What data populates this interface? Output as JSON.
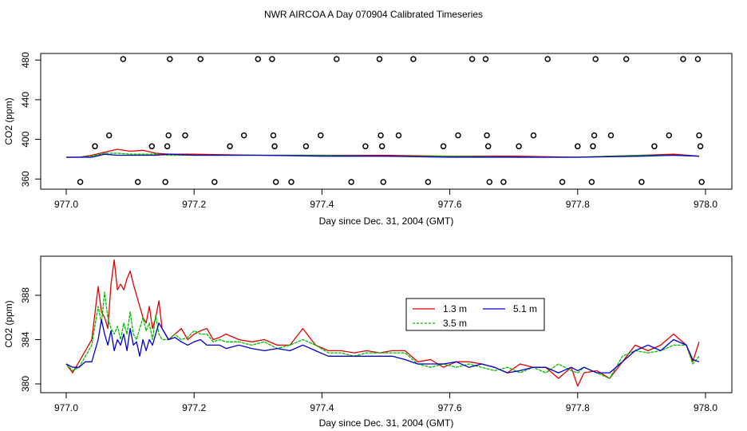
{
  "title": "NWR AIRCOA A  Day 070904  Calibrated Timeseries",
  "colors": {
    "r13": "#e00000",
    "r35": "#00bb00",
    "r51": "#0000cc",
    "axis": "#000000"
  },
  "chart_data": [
    {
      "type": "scatter+line",
      "xlabel": "Day since Dec. 31, 2004 (GMT)",
      "ylabel": "CO2 (ppm)",
      "xlim": [
        977.0,
        978.0
      ],
      "ylim": [
        352,
        485
      ],
      "xticks": [
        "977.0",
        "977.2",
        "977.4",
        "977.6",
        "977.8",
        "978.0"
      ],
      "yticks": [
        "360",
        "400",
        "440",
        "480"
      ],
      "xtick_values": [
        977.0,
        977.2,
        977.4,
        977.6,
        977.8,
        978.0
      ],
      "ytick_values": [
        360,
        400,
        440,
        480
      ],
      "calibration_points": {
        "x": [
          977.022,
          977.045,
          977.067,
          977.089,
          977.112,
          977.134,
          977.155,
          977.158,
          977.16,
          977.162,
          977.186,
          977.21,
          977.232,
          977.256,
          977.278,
          977.3,
          977.322,
          977.324,
          977.326,
          977.328,
          977.352,
          977.375,
          977.398,
          977.423,
          977.446,
          977.468,
          977.49,
          977.492,
          977.494,
          977.496,
          977.52,
          977.543,
          977.566,
          977.59,
          977.613,
          977.635,
          977.656,
          977.658,
          977.66,
          977.662,
          977.684,
          977.708,
          977.731,
          977.753,
          977.776,
          977.8,
          977.822,
          977.824,
          977.826,
          977.828,
          977.852,
          977.876,
          977.9,
          977.92,
          977.943,
          977.965,
          977.988,
          977.99,
          977.992,
          977.994
        ],
        "y": [
          357,
          393,
          404,
          481,
          357,
          393,
          357,
          393,
          404,
          481,
          404,
          481,
          357,
          393,
          404,
          481,
          481,
          404,
          393,
          357,
          357,
          393,
          404,
          481,
          357,
          393,
          481,
          404,
          393,
          357,
          404,
          481,
          357,
          393,
          404,
          481,
          481,
          404,
          393,
          357,
          357,
          393,
          404,
          481,
          357,
          393,
          357,
          393,
          404,
          481,
          404,
          481,
          357,
          393,
          404,
          481,
          481,
          404,
          393,
          357
        ]
      },
      "series": [
        {
          "name": "1.3 m",
          "color_key": "r13",
          "x": [
            977.0,
            977.02,
            977.04,
            977.06,
            977.08,
            977.1,
            977.12,
            977.14,
            977.16,
            977.2,
            977.3,
            977.4,
            977.5,
            977.6,
            977.7,
            977.8,
            977.9,
            977.95,
            977.99
          ],
          "y": [
            382,
            382,
            384,
            387,
            390,
            388,
            389,
            386,
            385,
            385,
            384,
            384,
            384,
            383,
            383,
            382,
            384,
            385,
            383
          ]
        },
        {
          "name": "3.5 m",
          "color_key": "r35",
          "x": [
            977.0,
            977.02,
            977.04,
            977.06,
            977.08,
            977.1,
            977.12,
            977.14,
            977.16,
            977.2,
            977.3,
            977.4,
            977.5,
            977.6,
            977.7,
            977.8,
            977.9,
            977.95,
            977.99
          ],
          "y": [
            382,
            382,
            383,
            386,
            386,
            385,
            385,
            385,
            384,
            384,
            384,
            384,
            383,
            383,
            382,
            382,
            384,
            384,
            383
          ]
        },
        {
          "name": "5.1 m",
          "color_key": "r51",
          "x": [
            977.0,
            977.02,
            977.04,
            977.06,
            977.08,
            977.1,
            977.12,
            977.14,
            977.16,
            977.2,
            977.3,
            977.4,
            977.5,
            977.6,
            977.7,
            977.8,
            977.9,
            977.95,
            977.99
          ],
          "y": [
            382,
            382,
            382,
            385,
            384,
            384,
            384,
            384,
            385,
            384,
            384,
            383,
            383,
            382,
            382,
            382,
            383,
            384,
            383
          ]
        }
      ]
    },
    {
      "type": "line",
      "xlabel": "Day since Dec. 31, 2004 (GMT)",
      "ylabel": "CO2 (ppm)",
      "xlim": [
        977.0,
        978.0
      ],
      "ylim": [
        379.5,
        391.5
      ],
      "xticks": [
        "977.0",
        "977.2",
        "977.4",
        "977.6",
        "977.8",
        "978.0"
      ],
      "yticks": [
        "380",
        "384",
        "388"
      ],
      "xtick_values": [
        977.0,
        977.2,
        977.4,
        977.6,
        977.8,
        978.0
      ],
      "ytick_values": [
        380,
        384,
        388
      ],
      "legend": {
        "placement": "center-right",
        "entries": [
          "1.3 m",
          "5.1 m",
          "3.5 m"
        ]
      },
      "series": [
        {
          "name": "1.3 m",
          "color_key": "r13",
          "x": [
            977.0,
            977.01,
            977.02,
            977.03,
            977.04,
            977.05,
            977.055,
            977.06,
            977.065,
            977.07,
            977.075,
            977.08,
            977.085,
            977.09,
            977.095,
            977.1,
            977.105,
            977.11,
            977.115,
            977.12,
            977.125,
            977.13,
            977.135,
            977.14,
            977.145,
            977.15,
            977.16,
            977.17,
            977.18,
            977.19,
            977.2,
            977.21,
            977.22,
            977.23,
            977.24,
            977.25,
            977.27,
            977.29,
            977.31,
            977.33,
            977.35,
            977.37,
            977.39,
            977.41,
            977.43,
            977.45,
            977.47,
            977.49,
            977.51,
            977.53,
            977.55,
            977.57,
            977.59,
            977.61,
            977.63,
            977.65,
            977.67,
            977.69,
            977.71,
            977.73,
            977.75,
            977.77,
            977.79,
            977.8,
            977.81,
            977.83,
            977.85,
            977.87,
            977.89,
            977.91,
            977.93,
            977.95,
            977.97,
            977.98,
            977.99
          ],
          "y": [
            381.8,
            381.0,
            382.0,
            383.0,
            384.0,
            388.8,
            386.5,
            386.0,
            385.0,
            389.0,
            391.2,
            388.5,
            389.0,
            388.5,
            389.5,
            390.2,
            389.0,
            388.0,
            387.0,
            386.0,
            385.5,
            387.0,
            385.0,
            386.0,
            387.5,
            385.0,
            384.0,
            384.5,
            385.0,
            384.0,
            384.5,
            384.8,
            385.0,
            384.0,
            384.2,
            384.5,
            384.0,
            383.8,
            384.0,
            383.5,
            383.5,
            385.0,
            383.5,
            383.0,
            383.0,
            382.8,
            383.0,
            382.8,
            383.0,
            383.0,
            382.0,
            382.2,
            381.5,
            382.0,
            382.0,
            381.8,
            381.5,
            381.0,
            381.8,
            381.5,
            381.5,
            380.5,
            381.5,
            379.8,
            381.0,
            381.2,
            380.5,
            382.0,
            383.5,
            383.0,
            383.5,
            384.5,
            383.5,
            382.0,
            383.8
          ]
        },
        {
          "name": "3.5 m",
          "color_key": "r35",
          "x": [
            977.0,
            977.01,
            977.02,
            977.03,
            977.04,
            977.05,
            977.055,
            977.06,
            977.065,
            977.07,
            977.075,
            977.08,
            977.085,
            977.09,
            977.095,
            977.1,
            977.105,
            977.11,
            977.115,
            977.12,
            977.125,
            977.13,
            977.135,
            977.14,
            977.145,
            977.15,
            977.16,
            977.17,
            977.18,
            977.19,
            977.2,
            977.21,
            977.22,
            977.23,
            977.24,
            977.25,
            977.27,
            977.29,
            977.31,
            977.33,
            977.35,
            977.37,
            977.39,
            977.41,
            977.43,
            977.45,
            977.47,
            977.49,
            977.51,
            977.53,
            977.55,
            977.57,
            977.59,
            977.61,
            977.63,
            977.65,
            977.67,
            977.69,
            977.71,
            977.73,
            977.75,
            977.77,
            977.79,
            977.8,
            977.81,
            977.83,
            977.85,
            977.87,
            977.89,
            977.91,
            977.93,
            977.95,
            977.97,
            977.98,
            977.99
          ],
          "y": [
            381.8,
            381.2,
            381.5,
            382.5,
            383.5,
            387.0,
            385.5,
            388.3,
            386.0,
            385.0,
            384.5,
            385.2,
            384.0,
            385.5,
            384.5,
            386.5,
            384.5,
            384.0,
            385.0,
            386.0,
            384.8,
            385.5,
            384.0,
            386.2,
            384.5,
            384.0,
            384.0,
            384.5,
            384.0,
            384.2,
            384.8,
            384.5,
            384.5,
            383.8,
            384.0,
            383.8,
            383.8,
            383.5,
            383.8,
            383.2,
            383.5,
            384.0,
            383.5,
            382.8,
            382.8,
            382.5,
            382.8,
            382.8,
            382.8,
            382.8,
            381.8,
            381.5,
            381.8,
            381.5,
            381.8,
            381.5,
            381.2,
            381.5,
            381.0,
            381.5,
            381.0,
            381.8,
            381.2,
            381.0,
            381.5,
            381.0,
            380.5,
            382.5,
            383.0,
            382.8,
            383.0,
            383.5,
            383.5,
            381.8,
            382.5
          ]
        },
        {
          "name": "5.1 m",
          "color_key": "r51",
          "x": [
            977.0,
            977.01,
            977.02,
            977.03,
            977.04,
            977.05,
            977.055,
            977.06,
            977.065,
            977.07,
            977.075,
            977.08,
            977.085,
            977.09,
            977.095,
            977.1,
            977.105,
            977.11,
            977.115,
            977.12,
            977.125,
            977.13,
            977.135,
            977.14,
            977.145,
            977.15,
            977.16,
            977.17,
            977.18,
            977.19,
            977.2,
            977.21,
            977.22,
            977.23,
            977.24,
            977.25,
            977.27,
            977.29,
            977.31,
            977.33,
            977.35,
            977.37,
            977.39,
            977.41,
            977.43,
            977.45,
            977.47,
            977.49,
            977.51,
            977.53,
            977.55,
            977.57,
            977.59,
            977.61,
            977.63,
            977.65,
            977.67,
            977.69,
            977.71,
            977.73,
            977.75,
            977.77,
            977.79,
            977.8,
            977.81,
            977.83,
            977.85,
            977.87,
            977.89,
            977.91,
            977.93,
            977.95,
            977.97,
            977.98,
            977.99
          ],
          "y": [
            381.8,
            381.5,
            381.5,
            382.0,
            382.0,
            384.0,
            385.8,
            384.5,
            383.5,
            384.8,
            383.0,
            384.0,
            383.5,
            384.5,
            383.0,
            385.0,
            383.5,
            383.8,
            382.5,
            384.0,
            383.0,
            384.0,
            383.5,
            384.5,
            385.5,
            385.0,
            384.0,
            384.2,
            383.8,
            383.5,
            383.8,
            384.0,
            383.5,
            383.5,
            383.5,
            383.2,
            383.5,
            383.2,
            383.0,
            383.2,
            383.0,
            383.5,
            383.0,
            382.5,
            382.5,
            382.5,
            382.5,
            382.5,
            382.5,
            382.2,
            381.8,
            381.8,
            381.8,
            382.0,
            381.5,
            381.8,
            381.5,
            381.0,
            381.2,
            381.5,
            381.5,
            381.0,
            381.5,
            381.2,
            381.5,
            381.0,
            381.0,
            382.0,
            383.0,
            383.5,
            383.0,
            384.0,
            383.5,
            382.2,
            382.0
          ]
        }
      ]
    }
  ]
}
